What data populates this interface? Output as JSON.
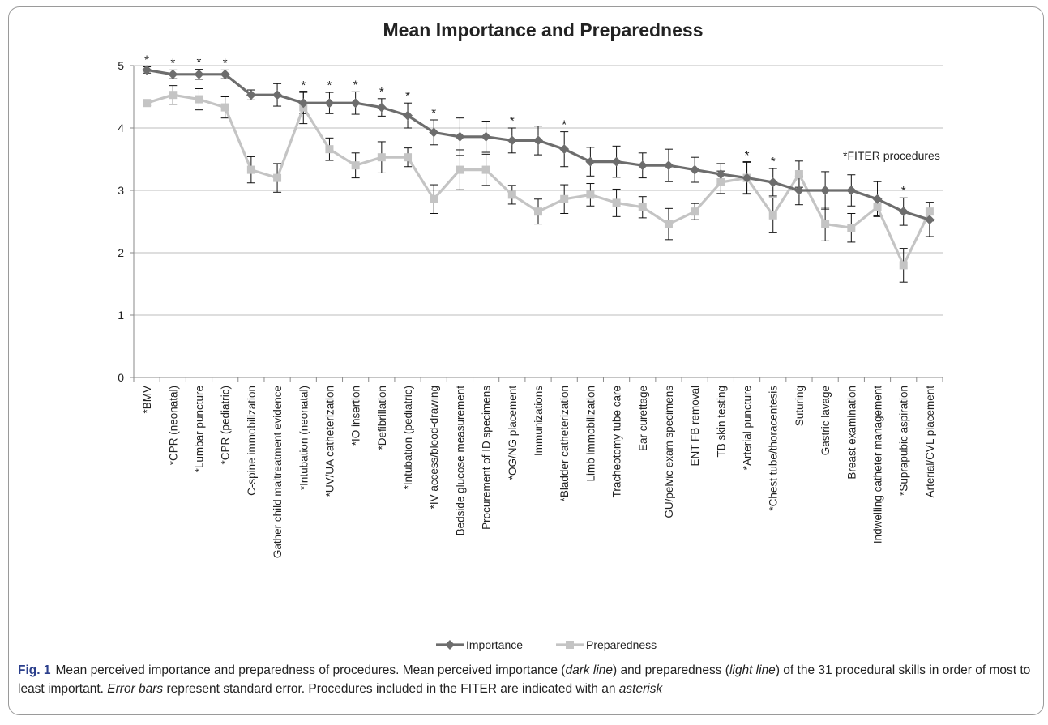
{
  "chart_data": {
    "type": "line",
    "title": "Mean Importance and Preparedness",
    "annotation": "*FITER procedures",
    "ylim": [
      0,
      5
    ],
    "yticks": [
      0,
      1,
      2,
      3,
      4,
      5
    ],
    "grid": true,
    "legend": "bottom",
    "categories": [
      "*BMV",
      "*CPR (neonatal)",
      "*Lumbar puncture",
      "*CPR (pediatric)",
      "C-spine immobilization",
      "Gather child maltreatment evidence",
      "*Intubation (neonatal)",
      "*UV/UA catheterization",
      "*IO insertion",
      "*Defibrillation",
      "*Intubation (pediatric)",
      "*IV access/blood-drawing",
      "Bedside glucose measurement",
      "Procurement of ID specimens",
      "*OG/NG placement",
      "Immunizations",
      "*Bladder catheterization",
      "Limb immobilization",
      "Tracheotomy tube care",
      "Ear curettage",
      "GU/pelvic exam specimens",
      "ENT FB removal",
      "TB skin testing",
      "*Arterial puncture",
      "*Chest tube/thoracentesis",
      "Suturing",
      "Gastric lavage",
      "Breast examination",
      "Indwelling catheter management",
      "*Suprapubic aspiration",
      "Arterial/CVL placement"
    ],
    "fiter": [
      true,
      true,
      true,
      true,
      false,
      false,
      true,
      true,
      true,
      true,
      true,
      true,
      false,
      false,
      true,
      false,
      true,
      false,
      false,
      false,
      false,
      false,
      false,
      true,
      true,
      false,
      false,
      false,
      false,
      true,
      false
    ],
    "series": [
      {
        "name": "Importance",
        "color": "#6d6d6d",
        "marker": "diamond",
        "values": [
          4.93,
          4.86,
          4.86,
          4.86,
          4.53,
          4.53,
          4.4,
          4.4,
          4.4,
          4.33,
          4.2,
          3.93,
          3.86,
          3.86,
          3.8,
          3.8,
          3.66,
          3.46,
          3.46,
          3.4,
          3.4,
          3.33,
          3.26,
          3.2,
          3.13,
          3.0,
          3.0,
          3.0,
          2.86,
          2.66,
          2.53
        ],
        "error": [
          0.05,
          0.07,
          0.08,
          0.07,
          0.08,
          0.18,
          0.17,
          0.17,
          0.18,
          0.14,
          0.2,
          0.2,
          0.3,
          0.25,
          0.2,
          0.23,
          0.28,
          0.23,
          0.25,
          0.2,
          0.26,
          0.2,
          0.17,
          0.25,
          0.22,
          0.23,
          0.3,
          0.25,
          0.28,
          0.22,
          0.27
        ]
      },
      {
        "name": "Preparedness",
        "color": "#c4c4c4",
        "marker": "square",
        "values": [
          4.4,
          4.53,
          4.46,
          4.33,
          3.33,
          3.2,
          4.33,
          3.66,
          3.4,
          3.53,
          3.53,
          2.86,
          3.33,
          3.33,
          2.93,
          2.66,
          2.86,
          2.93,
          2.8,
          2.73,
          2.46,
          2.66,
          3.13,
          3.2,
          2.6,
          3.26,
          2.46,
          2.4,
          2.73,
          1.8,
          2.66
        ],
        "error": [
          0.04,
          0.15,
          0.17,
          0.17,
          0.21,
          0.23,
          0.26,
          0.18,
          0.2,
          0.25,
          0.15,
          0.23,
          0.32,
          0.25,
          0.15,
          0.2,
          0.23,
          0.18,
          0.22,
          0.17,
          0.25,
          0.13,
          0.18,
          0.26,
          0.28,
          0.21,
          0.27,
          0.23,
          0.14,
          0.27,
          0.15
        ]
      }
    ]
  },
  "caption": {
    "label": "Fig. 1",
    "part1": "Mean perceived importance and preparedness of procedures. Mean perceived importance (",
    "dark": "dark line",
    "part2": ") and preparedness (",
    "light": "light line",
    "part3": ") of the 31 procedural skills in order of most to least important. ",
    "errbars": "Error bars",
    "part4": " represent standard error. Procedures included in the FITER are indicated with an ",
    "asterisk": "asterisk"
  }
}
